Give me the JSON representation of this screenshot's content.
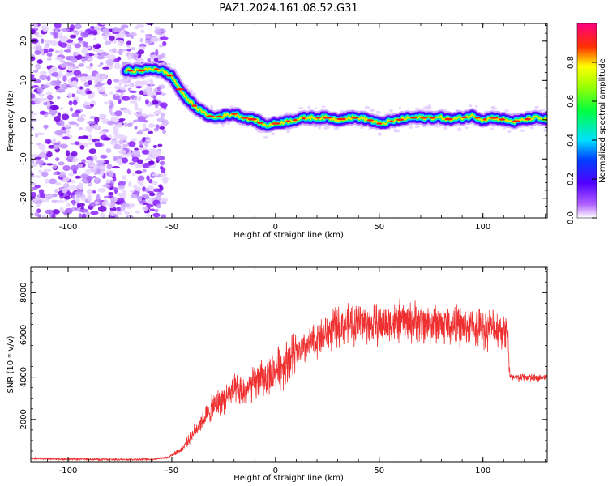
{
  "title": "PAZ1.2024.161.08.52.G31",
  "chart_data": [
    {
      "type": "heatmap",
      "title": "PAZ1.2024.161.08.52.G31",
      "xlabel": "Height of straight line (km)",
      "ylabel": "Frequency (Hz)",
      "xlim": [
        -118,
        131
      ],
      "ylim": [
        -25,
        24.5
      ],
      "xticks": [
        -100,
        -50,
        0,
        50,
        100
      ],
      "yticks": [
        -20,
        -10,
        0,
        10,
        20
      ],
      "colorbar": {
        "label": "Normalized spectral amplitude",
        "range": [
          0,
          1
        ],
        "ticks": [
          0.0,
          0.2,
          0.4,
          0.6,
          0.8
        ],
        "colormap": [
          "#ffffff",
          "#8a00ff",
          "#0000ff",
          "#00e5ff",
          "#00ff00",
          "#ffff00",
          "#ff0000",
          "#ff0090"
        ]
      },
      "ridge": {
        "x": [
          -72,
          -65,
          -58,
          -53,
          -50,
          -47,
          -44,
          -41,
          -38,
          -34,
          -30,
          -25,
          -20,
          -15,
          -10,
          -5,
          0,
          5,
          10,
          15,
          20,
          25,
          30,
          35,
          40,
          45,
          50,
          55,
          60,
          65,
          70,
          75,
          80,
          85,
          90,
          95,
          100,
          105,
          110,
          115,
          120,
          125,
          131
        ],
        "y": [
          12.5,
          12.5,
          13,
          12,
          11,
          8.5,
          6,
          4.5,
          3,
          1.5,
          0.5,
          1,
          1.5,
          0.5,
          0,
          -1.5,
          -1,
          -0.5,
          0,
          0.5,
          0.5,
          0.5,
          0,
          0.5,
          0.5,
          0,
          -1,
          -0.5,
          0,
          0.5,
          0.5,
          0.5,
          0.5,
          0,
          0.5,
          1,
          0,
          0.5,
          0,
          -0.5,
          0,
          0.5,
          0
        ]
      },
      "noise_region_x": [
        -118,
        -53
      ]
    },
    {
      "type": "line",
      "xlabel": "Height of straight line (km)",
      "ylabel": "SNR (10 * v/v)",
      "xlim": [
        -118,
        131
      ],
      "ylim": [
        0,
        9200
      ],
      "xticks": [
        -100,
        -50,
        0,
        50,
        100
      ],
      "yticks": [
        2000,
        4000,
        6000,
        8000
      ],
      "color": "#ee3030",
      "series": [
        {
          "x": [
            -118,
            -100,
            -80,
            -60,
            -52,
            -45,
            -40,
            -35,
            -30,
            -25,
            -20,
            -15,
            -10,
            -5,
            0,
            5,
            10,
            15,
            20,
            25,
            30,
            40,
            50,
            60,
            70,
            80,
            90,
            100,
            105,
            112,
            113,
            115,
            120,
            125,
            131
          ],
          "y": [
            150,
            120,
            100,
            110,
            200,
            600,
            1300,
            2000,
            2600,
            3000,
            3300,
            3300,
            3700,
            4000,
            4300,
            4700,
            5100,
            5400,
            5800,
            6100,
            6400,
            6600,
            6500,
            6600,
            6600,
            6500,
            6400,
            6300,
            6300,
            6200,
            4000,
            3950,
            4000,
            3950,
            4000
          ]
        }
      ]
    }
  ]
}
